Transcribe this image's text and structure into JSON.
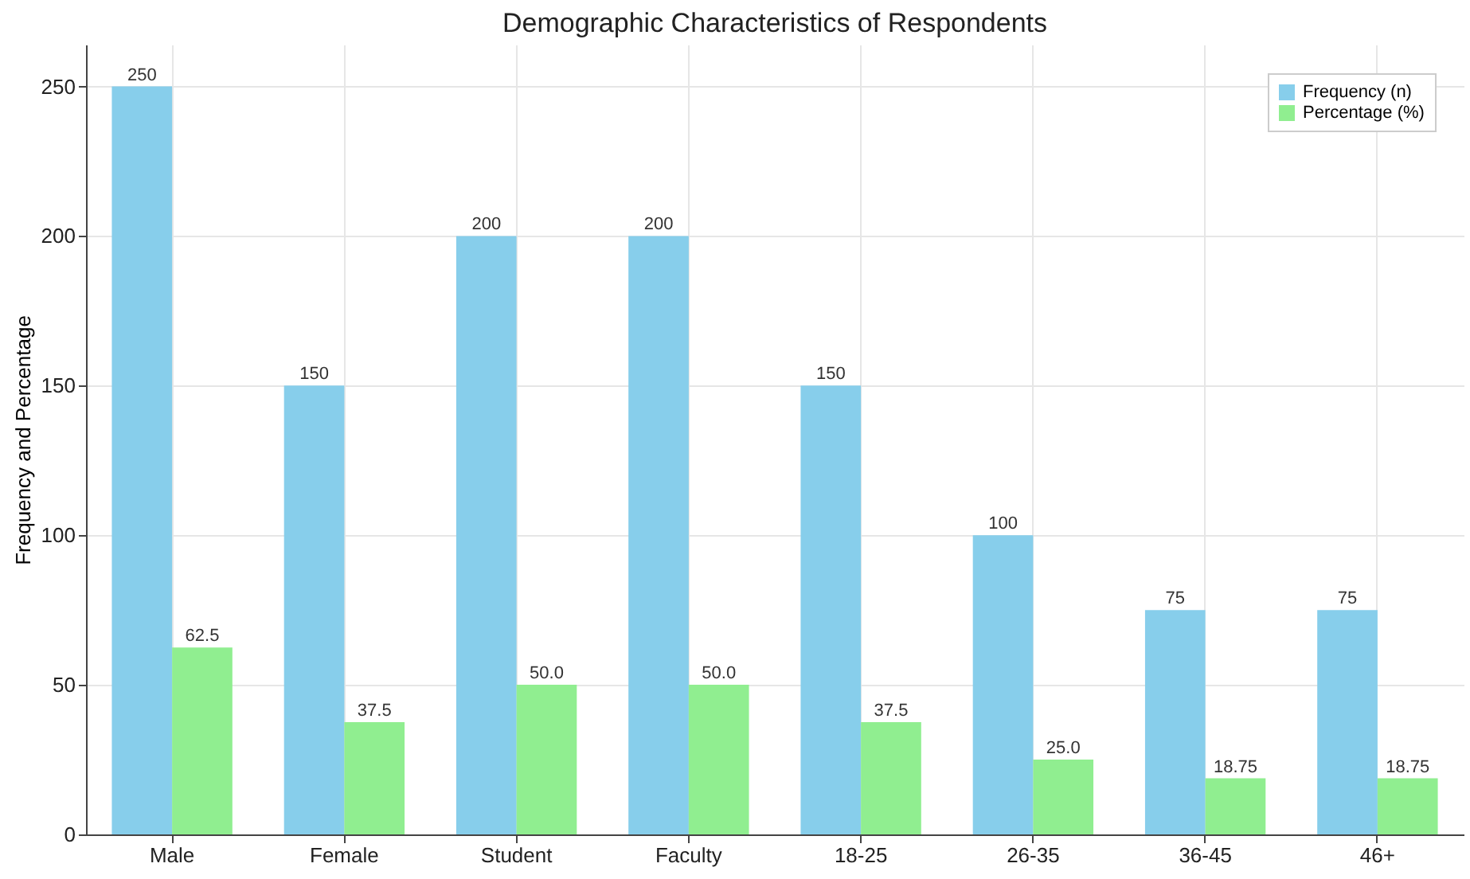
{
  "chart_data": {
    "type": "bar",
    "title": "Demographic Characteristics of Respondents",
    "ylabel": "Frequency and Percentage",
    "categories": [
      "Male",
      "Female",
      "Student",
      "Faculty",
      "18-25",
      "26-35",
      "36-45",
      "46+"
    ],
    "series": [
      {
        "name": "Frequency (n)",
        "color": "#87ceeb",
        "values": [
          250,
          150,
          200,
          200,
          150,
          100,
          75,
          75
        ],
        "value_labels": [
          "250",
          "150",
          "200",
          "200",
          "150",
          "100",
          "75",
          "75"
        ]
      },
      {
        "name": "Percentage (%)",
        "color": "#90ee90",
        "values": [
          62.5,
          37.5,
          50,
          50,
          37.5,
          25,
          18.75,
          18.75
        ],
        "value_labels": [
          "62.5",
          "37.5",
          "50.0",
          "50.0",
          "37.5",
          "25.0",
          "18.75",
          "18.75"
        ]
      }
    ],
    "ylim": [
      0,
      264
    ],
    "yticks": [
      0,
      50,
      100,
      150,
      200,
      250
    ],
    "grid": true,
    "legend": "top right"
  }
}
